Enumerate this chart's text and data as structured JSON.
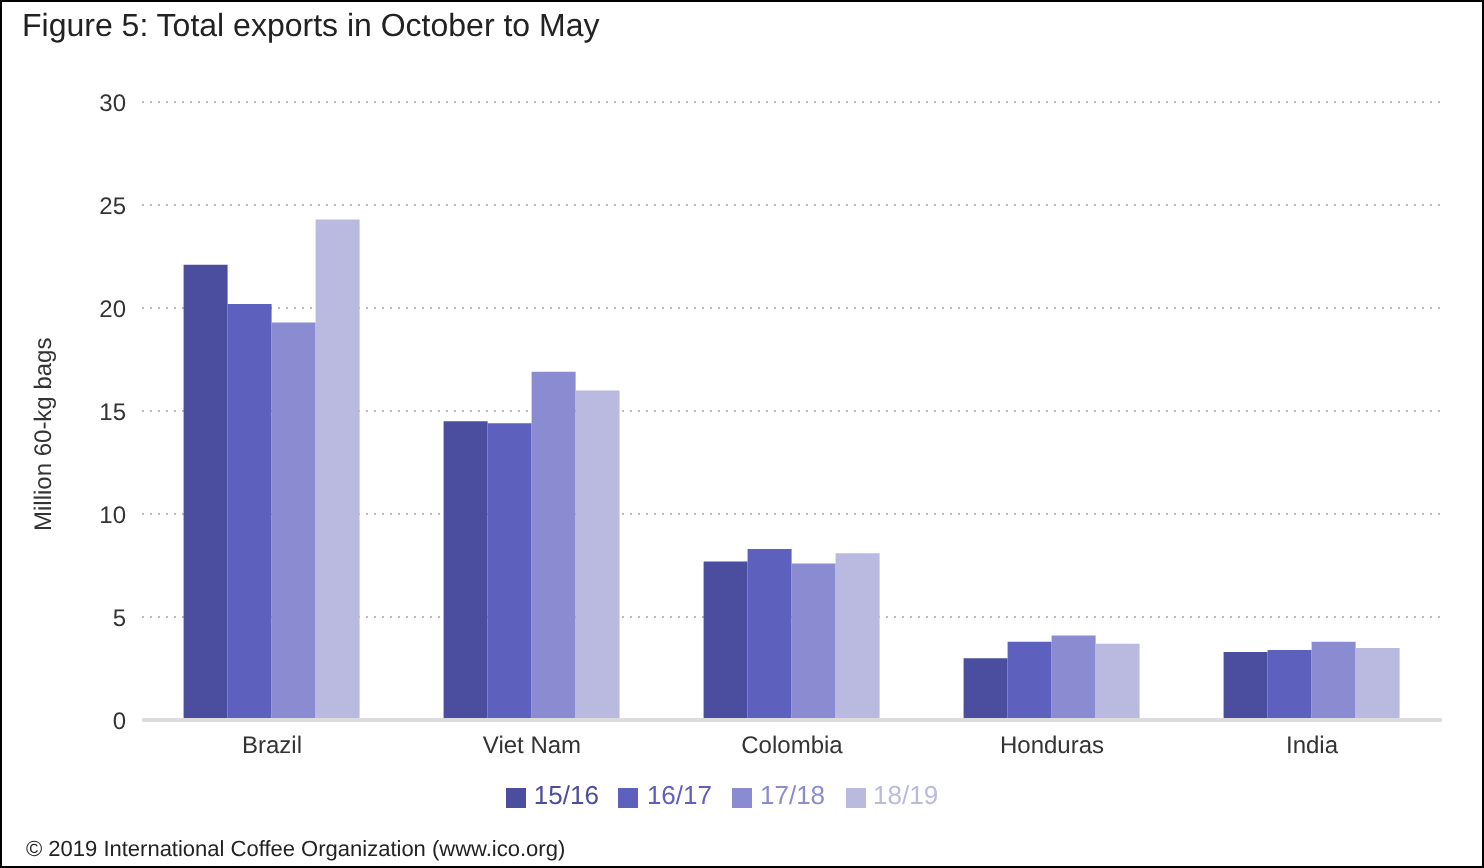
{
  "chart_data": {
    "type": "bar",
    "title": "Figure 5: Total exports in October to May",
    "ylabel": "Million 60-kg bags",
    "categories": [
      "Brazil",
      "Viet Nam",
      "Colombia",
      "Honduras",
      "India"
    ],
    "series": [
      {
        "name": "15/16",
        "color": "#4b4e9e",
        "values": [
          22.1,
          14.5,
          7.7,
          3.0,
          3.3
        ]
      },
      {
        "name": "16/17",
        "color": "#5e60bd",
        "values": [
          20.2,
          14.4,
          8.3,
          3.8,
          3.4
        ]
      },
      {
        "name": "17/18",
        "color": "#8a8bd1",
        "values": [
          19.3,
          16.9,
          7.6,
          4.1,
          3.8
        ]
      },
      {
        "name": "18/19",
        "color": "#babae0",
        "values": [
          24.3,
          16.0,
          8.1,
          3.7,
          3.5
        ]
      }
    ],
    "ylim": [
      0,
      30
    ],
    "yticks": [
      0,
      5,
      10,
      15,
      20,
      25,
      30
    ],
    "grid": "y",
    "legend": "bottom",
    "annotations": [
      "© 2019 International Coffee Organization (www.ico.org)"
    ]
  }
}
